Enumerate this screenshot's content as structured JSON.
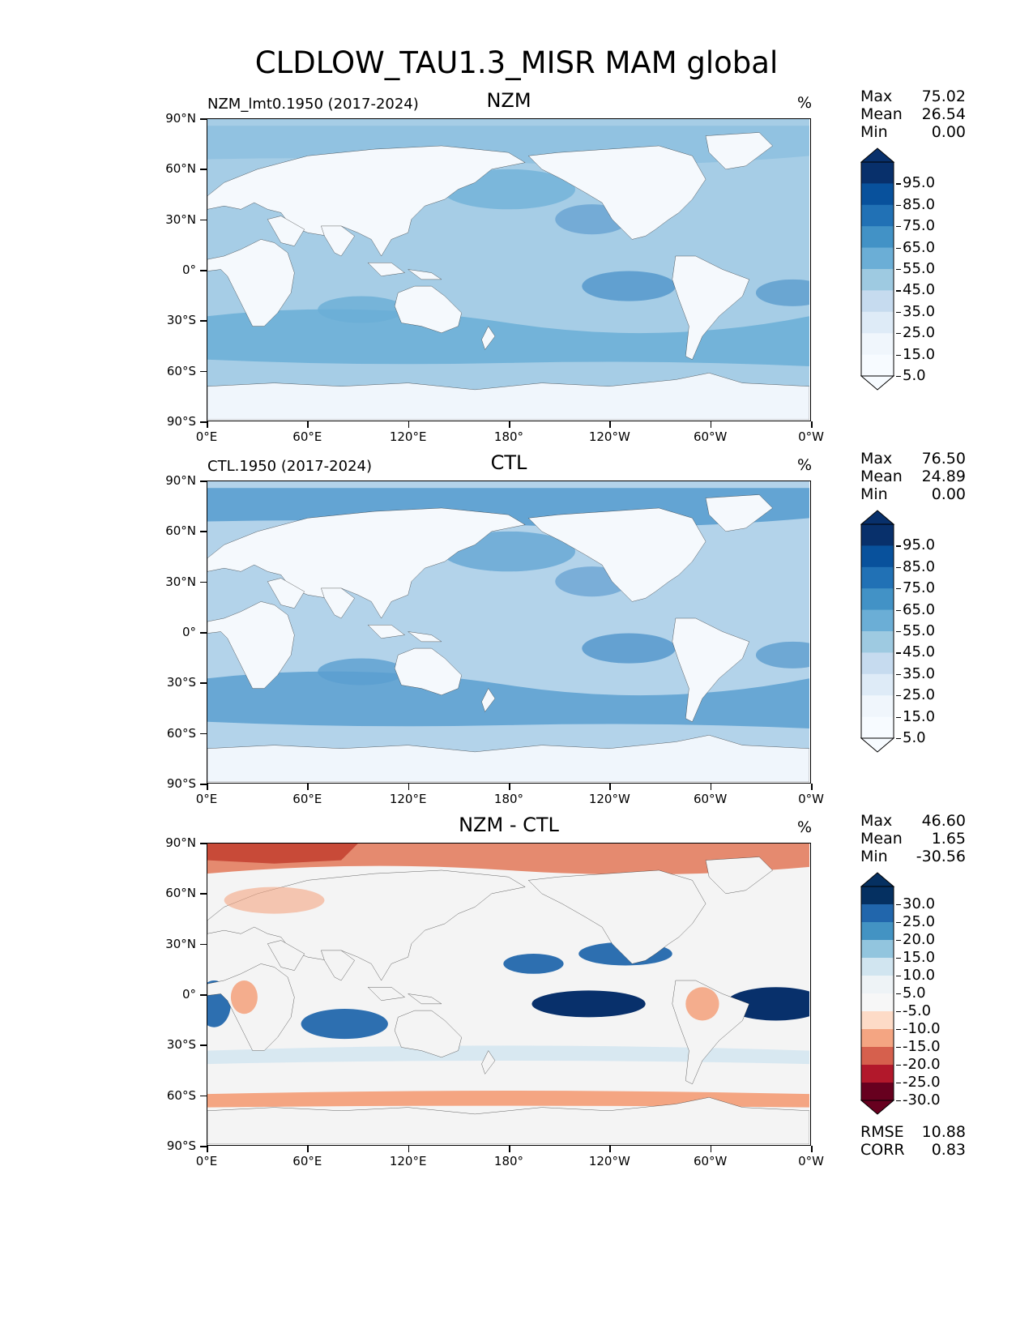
{
  "figure_title": "CLDLOW_TAU1.3_MISR MAM global",
  "axes": {
    "xticks": [
      "0°E",
      "60°E",
      "120°E",
      "180°",
      "120°W",
      "60°W",
      "0°W"
    ],
    "yticks": [
      "90°N",
      "60°N",
      "30°N",
      "0°",
      "30°S",
      "60°S",
      "90°S"
    ]
  },
  "panels": [
    {
      "left_title": "NZM_lmt0.1950 (2017-2024)",
      "center_title": "NZM",
      "unit": "%",
      "stats": {
        "max_label": "Max",
        "max": "75.02",
        "mean_label": "Mean",
        "mean": "26.54",
        "min_label": "Min",
        "min": "0.00"
      },
      "colorbar": {
        "labels": [
          "95.0",
          "85.0",
          "75.0",
          "65.0",
          "55.0",
          "45.0",
          "35.0",
          "25.0",
          "15.0",
          "5.0"
        ],
        "colors": [
          "#08306b",
          "#08519c",
          "#2171b5",
          "#4292c6",
          "#6baed6",
          "#9ecae1",
          "#c6dbef",
          "#deebf7",
          "#f0f6fc",
          "#f7fbff"
        ]
      },
      "map_colors": {
        "ocean": "#a6cde6",
        "band": "#6aaed6",
        "land": "#f5f9fd",
        "antarctic": "#f0f6fc",
        "patch": "#4a90c8"
      }
    },
    {
      "left_title": "CTL.1950 (2017-2024)",
      "center_title": "CTL",
      "unit": "%",
      "stats": {
        "max_label": "Max",
        "max": "76.50",
        "mean_label": "Mean",
        "mean": "24.89",
        "min_label": "Min",
        "min": "0.00"
      },
      "colorbar": {
        "labels": [
          "95.0",
          "85.0",
          "75.0",
          "65.0",
          "55.0",
          "45.0",
          "35.0",
          "25.0",
          "15.0",
          "5.0"
        ],
        "colors": [
          "#08306b",
          "#08519c",
          "#2171b5",
          "#4292c6",
          "#6baed6",
          "#9ecae1",
          "#c6dbef",
          "#deebf7",
          "#f0f6fc",
          "#f7fbff"
        ]
      },
      "map_colors": {
        "ocean": "#b3d3ea",
        "band": "#5a9fd0",
        "land": "#f5f9fd",
        "antarctic": "#f0f6fc",
        "patch": "#4a90c8"
      }
    },
    {
      "left_title": "",
      "center_title": "NZM - CTL",
      "unit": "%",
      "stats": {
        "max_label": "Max",
        "max": "46.60",
        "mean_label": "Mean",
        "mean": "1.65",
        "min_label": "Min",
        "min": "-30.56"
      },
      "colorbar": {
        "labels": [
          "30.0",
          "25.0",
          "20.0",
          "15.0",
          "10.0",
          "5.0",
          "-5.0",
          "-10.0",
          "-15.0",
          "-20.0",
          "-25.0",
          "-30.0"
        ],
        "colors": [
          "#053061",
          "#2166ac",
          "#4393c3",
          "#92c5de",
          "#d1e5f0",
          "#eef3f6",
          "#f7f7f7",
          "#fddbc7",
          "#f4a582",
          "#d6604d",
          "#b2182b",
          "#67001f"
        ]
      },
      "metrics": {
        "rmse_label": "RMSE",
        "rmse": "10.88",
        "corr_label": "CORR",
        "corr": "0.83"
      },
      "map_colors": {
        "ocean": "#f4f4f4",
        "band": "#e58a6f",
        "land": "#f4f4f4",
        "antarctic": "#f4f4f4",
        "patch": "#2d6fb0"
      }
    }
  ]
}
